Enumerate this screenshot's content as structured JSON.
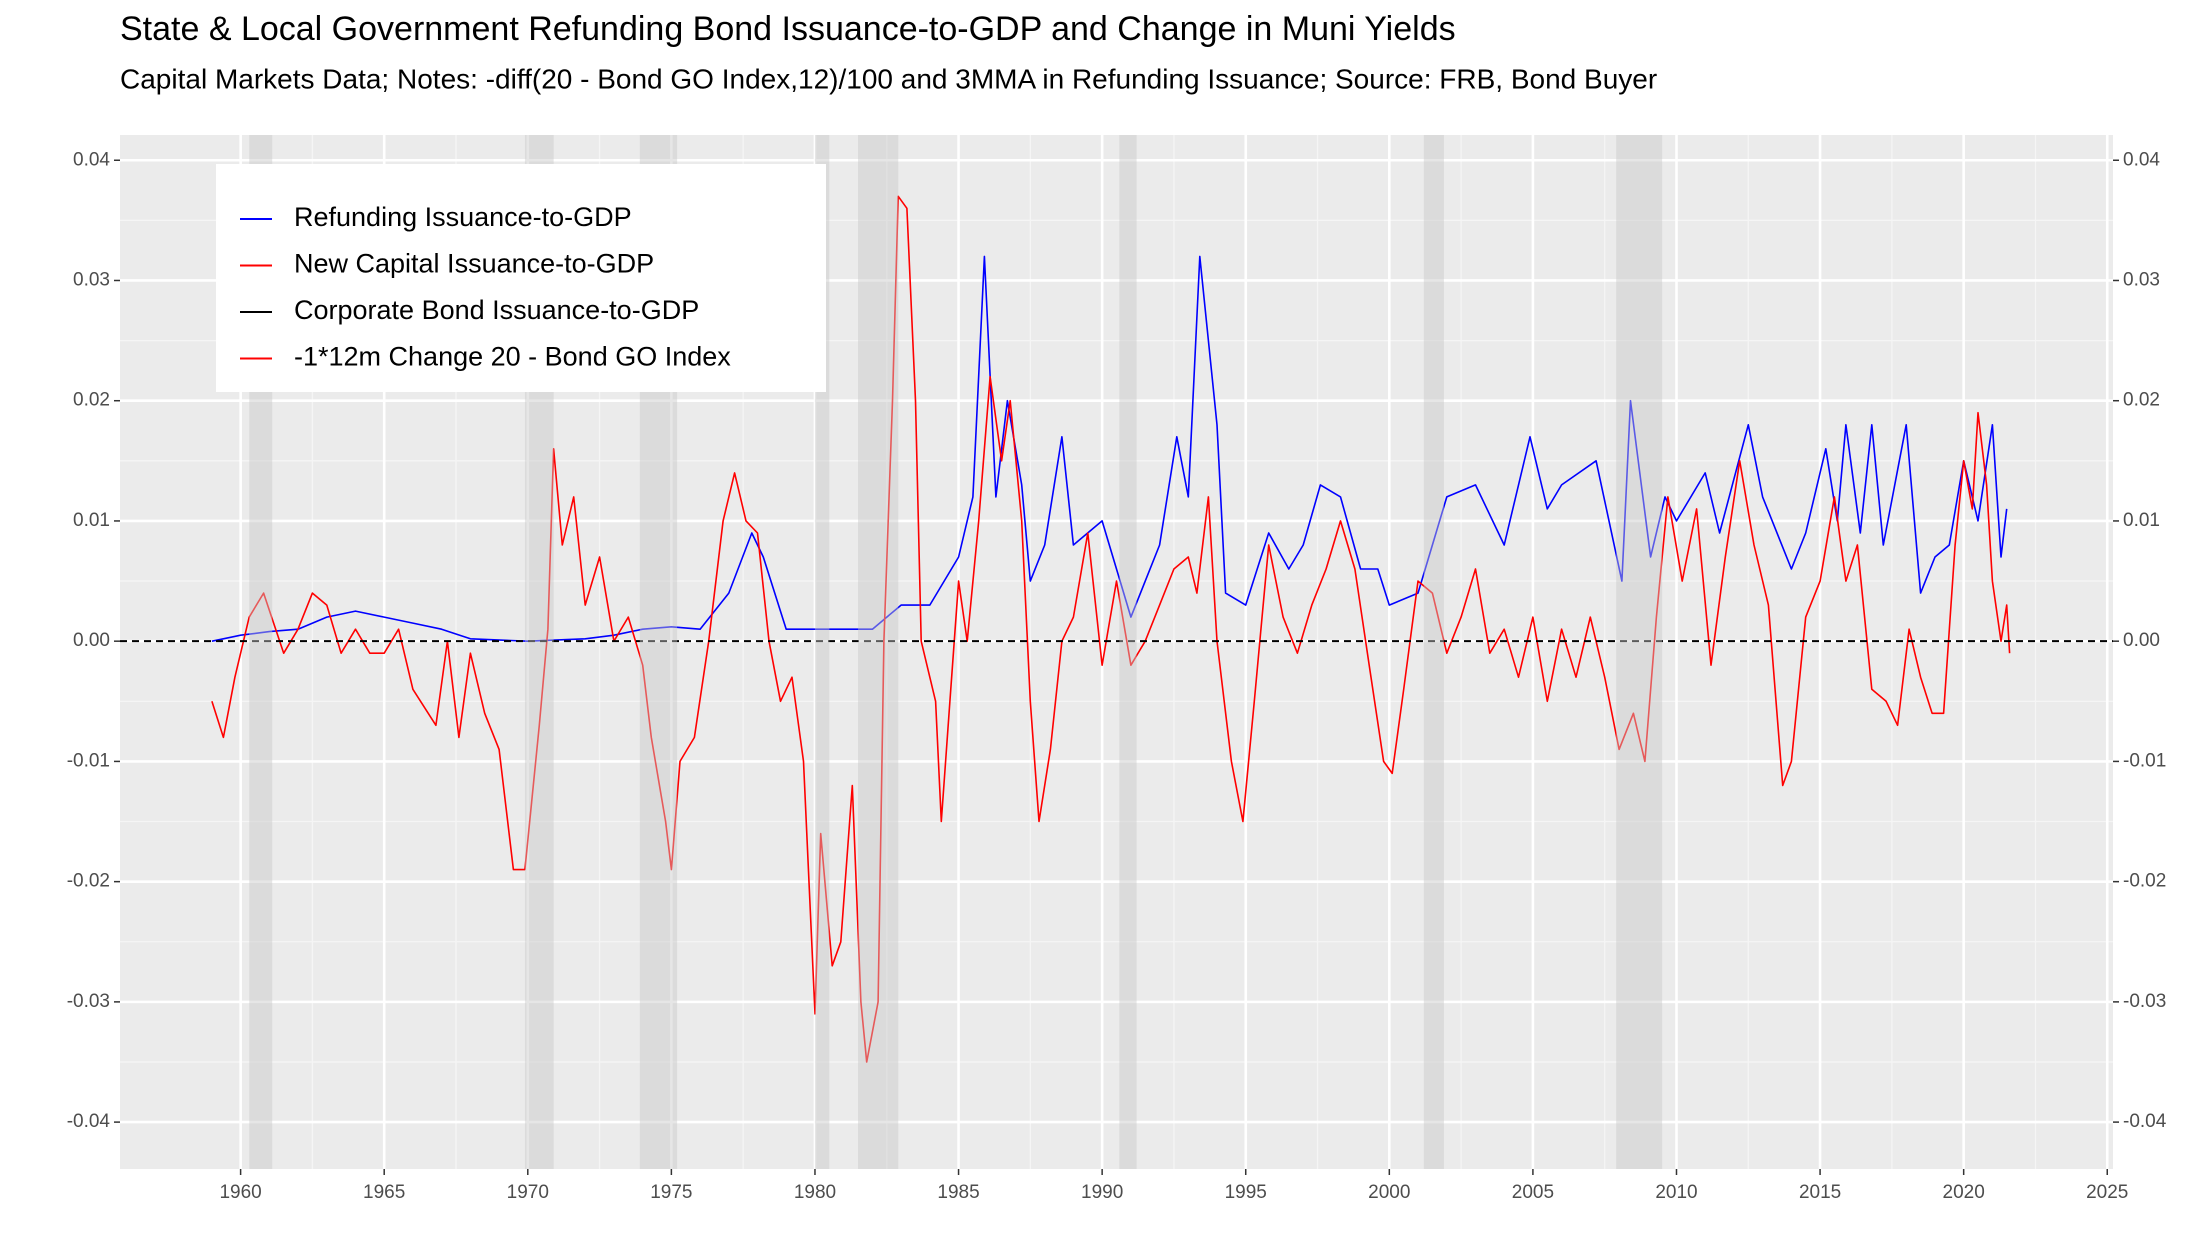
{
  "chart_data": {
    "type": "line",
    "title": "State & Local Government Refunding Bond Issuance-to-GDP and Change in Muni Yields",
    "subtitle": "Capital Markets Data; Notes: -diff(20 - Bond GO Index,12)/100 and 3MMA in Refunding Issuance; Source: FRB, Bond Buyer",
    "xlim": [
      1955.8,
      2025.2
    ],
    "xticks": [
      1960,
      1965,
      1970,
      1975,
      1980,
      1985,
      1990,
      1995,
      2000,
      2005,
      2010,
      2015,
      2020,
      2025
    ],
    "ylim": [
      -0.0439,
      0.0421
    ],
    "yticks": [
      -0.04,
      -0.03,
      -0.02,
      -0.01,
      {
        "value": 0,
        "label": "0.00"
      },
      0.01,
      0.02,
      0.03,
      0.04
    ],
    "y2lim": [
      -0.0439,
      0.0421
    ],
    "y2ticks": [
      -0.04,
      -0.03,
      -0.02,
      -0.01,
      {
        "value": 0,
        "label": "0.00"
      },
      0.01,
      0.02,
      0.03,
      0.04
    ],
    "grid": true,
    "recessions": [
      [
        1960.3,
        1961.1
      ],
      [
        1969.9,
        1970.9
      ],
      [
        1973.9,
        1975.2
      ],
      [
        1980.0,
        1980.5
      ],
      [
        1981.5,
        1982.9
      ],
      [
        1990.6,
        1991.2
      ],
      [
        2001.2,
        2001.9
      ],
      [
        2007.9,
        2009.5
      ]
    ],
    "series": [
      {
        "name": "Refunding Issuance-to-GDP",
        "color": "#0000ff",
        "x": [
          1959.0,
          1960.0,
          1961.0,
          1962.0,
          1963.0,
          1964.0,
          1965.0,
          1966.0,
          1967.0,
          1968.0,
          1970.0,
          1972.0,
          1973.0,
          1974.0,
          1975.0,
          1976.0,
          1977.0,
          1977.8,
          1978.2,
          1979.0,
          1980.0,
          1981.0,
          1982.0,
          1983.0,
          1984.0,
          1985.0,
          1985.5,
          1985.9,
          1986.3,
          1986.7,
          1987.2,
          1987.5,
          1988.0,
          1988.6,
          1989.0,
          1990.0,
          1990.5,
          1991.0,
          1992.0,
          1992.6,
          1993.0,
          1993.4,
          1994.0,
          1994.3,
          1995.0,
          1995.8,
          1996.5,
          1997.0,
          1997.6,
          1998.3,
          1999.0,
          1999.6,
          2000.0,
          2001.0,
          2001.5,
          2002.0,
          2003.0,
          2004.0,
          2004.9,
          2005.5,
          2006.0,
          2007.2,
          2008.1,
          2008.4,
          2009.1,
          2009.6,
          2010.0,
          2011.0,
          2011.5,
          2012.5,
          2013.0,
          2014.0,
          2014.5,
          2015.2,
          2015.6,
          2015.9,
          2016.4,
          2016.8,
          2017.2,
          2018.0,
          2018.5,
          2019.0,
          2019.5,
          2020.0,
          2020.5,
          2021.0,
          2021.3,
          2021.5
        ],
        "values": [
          0.0,
          0.0005,
          0.0008,
          0.001,
          0.002,
          0.0025,
          0.002,
          0.0015,
          0.001,
          0.0002,
          0.0,
          0.0002,
          0.0005,
          0.001,
          0.0012,
          0.001,
          0.004,
          0.009,
          0.007,
          0.001,
          0.001,
          0.001,
          0.001,
          0.003,
          0.003,
          0.007,
          0.012,
          0.032,
          0.012,
          0.02,
          0.013,
          0.005,
          0.008,
          0.017,
          0.008,
          0.01,
          0.006,
          0.002,
          0.008,
          0.017,
          0.012,
          0.032,
          0.018,
          0.004,
          0.003,
          0.009,
          0.006,
          0.008,
          0.013,
          0.012,
          0.006,
          0.006,
          0.003,
          0.004,
          0.008,
          0.012,
          0.013,
          0.008,
          0.017,
          0.011,
          0.013,
          0.015,
          0.005,
          0.02,
          0.007,
          0.012,
          0.01,
          0.014,
          0.009,
          0.018,
          0.012,
          0.006,
          0.009,
          0.016,
          0.01,
          0.018,
          0.009,
          0.018,
          0.008,
          0.018,
          0.004,
          0.007,
          0.008,
          0.015,
          0.01,
          0.018,
          0.007,
          0.011
        ]
      },
      {
        "name": "New Capital Issuance-to-GDP",
        "color": "#ff0000",
        "x": [],
        "values": []
      },
      {
        "name": "Corporate Bond Issuance-to-GDP",
        "color": "#000000",
        "x": [],
        "values": []
      },
      {
        "name": "-1*12m Change 20 - Bond GO Index",
        "color": "#ff0000",
        "x": [
          1959.0,
          1959.4,
          1959.8,
          1960.3,
          1960.8,
          1961.5,
          1962.0,
          1962.5,
          1963.0,
          1963.5,
          1964.0,
          1964.5,
          1965.0,
          1965.5,
          1966.0,
          1966.8,
          1967.2,
          1967.6,
          1968.0,
          1968.5,
          1969.0,
          1969.5,
          1969.9,
          1970.4,
          1970.7,
          1970.9,
          1971.2,
          1971.6,
          1972.0,
          1972.5,
          1973.0,
          1973.5,
          1974.0,
          1974.3,
          1974.8,
          1975.0,
          1975.3,
          1975.8,
          1976.3,
          1976.8,
          1977.2,
          1977.6,
          1978.0,
          1978.4,
          1978.8,
          1979.2,
          1979.6,
          1980.0,
          1980.2,
          1980.6,
          1980.9,
          1981.3,
          1981.6,
          1981.8,
          1982.2,
          1982.4,
          1982.7,
          1982.9,
          1983.2,
          1983.5,
          1983.7,
          1984.2,
          1984.4,
          1984.7,
          1985.0,
          1985.3,
          1985.7,
          1986.1,
          1986.5,
          1986.8,
          1987.2,
          1987.5,
          1987.8,
          1988.2,
          1988.6,
          1989.0,
          1989.5,
          1990.0,
          1990.5,
          1991.0,
          1991.5,
          1992.0,
          1992.5,
          1993.0,
          1993.3,
          1993.7,
          1994.0,
          1994.5,
          1994.9,
          1995.3,
          1995.8,
          1996.3,
          1996.8,
          1997.3,
          1997.8,
          1998.3,
          1998.8,
          1999.3,
          1999.8,
          2000.1,
          2000.5,
          2001.0,
          2001.5,
          2002.0,
          2002.5,
          2003.0,
          2003.5,
          2004.0,
          2004.5,
          2005.0,
          2005.5,
          2006.0,
          2006.5,
          2007.0,
          2007.5,
          2008.0,
          2008.5,
          2008.9,
          2009.3,
          2009.7,
          2010.2,
          2010.7,
          2011.2,
          2011.7,
          2012.2,
          2012.7,
          2013.2,
          2013.7,
          2014.0,
          2014.5,
          2015.0,
          2015.5,
          2015.9,
          2016.3,
          2016.8,
          2017.3,
          2017.7,
          2018.1,
          2018.5,
          2018.9,
          2019.3,
          2019.7,
          2020.0,
          2020.3,
          2020.5,
          2020.8,
          2021.0,
          2021.3,
          2021.5,
          2021.6
        ],
        "values": [
          -0.005,
          -0.008,
          -0.003,
          0.002,
          0.004,
          -0.001,
          0.001,
          0.004,
          0.003,
          -0.001,
          0.001,
          -0.001,
          -0.001,
          0.001,
          -0.004,
          -0.007,
          0.0,
          -0.008,
          -0.001,
          -0.006,
          -0.009,
          -0.019,
          -0.019,
          -0.007,
          0.001,
          0.016,
          0.008,
          0.012,
          0.003,
          0.007,
          0.0,
          0.002,
          -0.002,
          -0.008,
          -0.015,
          -0.019,
          -0.01,
          -0.008,
          0.0,
          0.01,
          0.014,
          0.01,
          0.009,
          0.0,
          -0.005,
          -0.003,
          -0.01,
          -0.031,
          -0.016,
          -0.027,
          -0.025,
          -0.012,
          -0.03,
          -0.035,
          -0.03,
          0.0,
          0.02,
          0.037,
          0.036,
          0.02,
          0.0,
          -0.005,
          -0.015,
          -0.005,
          0.005,
          0.0,
          0.01,
          0.022,
          0.015,
          0.02,
          0.01,
          -0.005,
          -0.015,
          -0.009,
          0.0,
          0.002,
          0.009,
          -0.002,
          0.005,
          -0.002,
          0.0,
          0.003,
          0.006,
          0.007,
          0.004,
          0.012,
          0.0,
          -0.01,
          -0.015,
          -0.005,
          0.008,
          0.002,
          -0.001,
          0.003,
          0.006,
          0.01,
          0.006,
          -0.002,
          -0.01,
          -0.011,
          -0.004,
          0.005,
          0.004,
          -0.001,
          0.002,
          0.006,
          -0.001,
          0.001,
          -0.003,
          0.002,
          -0.005,
          0.001,
          -0.003,
          0.002,
          -0.003,
          -0.009,
          -0.006,
          -0.01,
          0.002,
          0.012,
          0.005,
          0.011,
          -0.002,
          0.007,
          0.015,
          0.008,
          0.003,
          -0.012,
          -0.01,
          0.002,
          0.005,
          0.012,
          0.005,
          0.008,
          -0.004,
          -0.005,
          -0.007,
          0.001,
          -0.003,
          -0.006,
          -0.006,
          0.008,
          0.015,
          0.011,
          0.019,
          0.013,
          0.005,
          0.0,
          0.003,
          -0.001
        ]
      }
    ]
  }
}
